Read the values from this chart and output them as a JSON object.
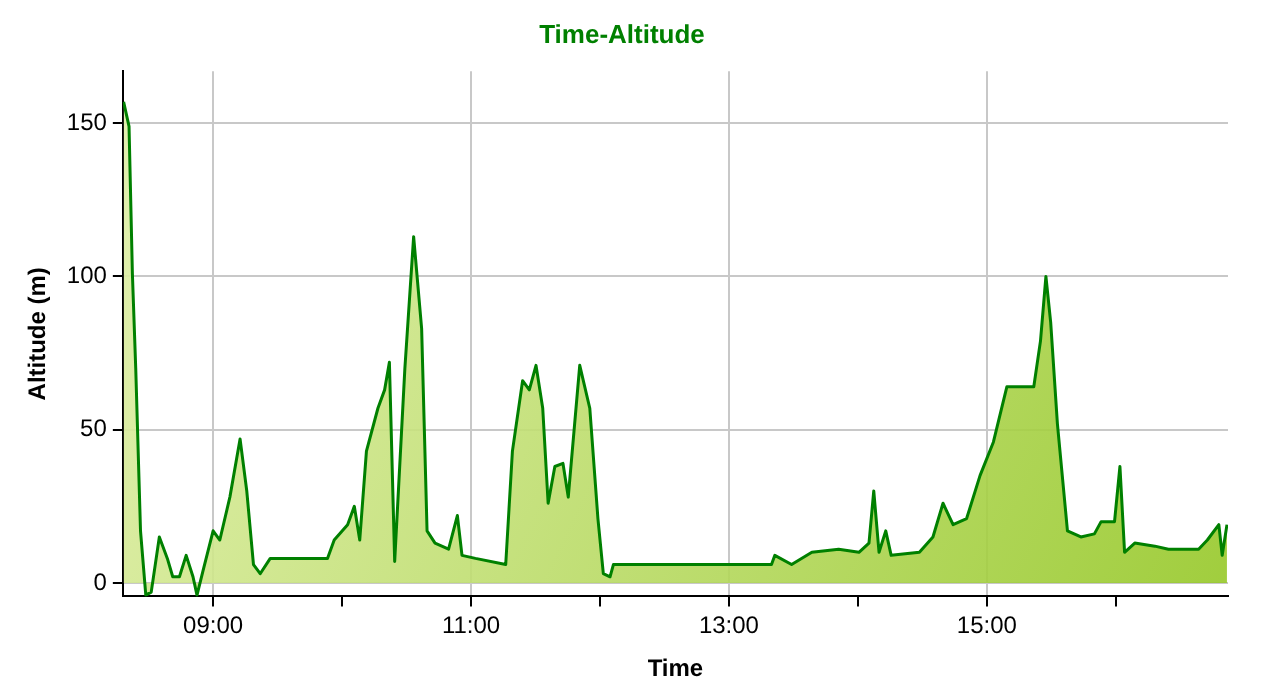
{
  "chart_data": {
    "type": "area",
    "title": "Time-Altitude",
    "xlabel": "Time",
    "ylabel": "Altitude (m)",
    "xlim": [
      8.3,
      16.87
    ],
    "ylim": [
      -4.4,
      167
    ],
    "xticks": [
      {
        "value": 9,
        "label": "09:00"
      },
      {
        "value": 10,
        "label": null
      },
      {
        "value": 11,
        "label": "11:00"
      },
      {
        "value": 12,
        "label": null
      },
      {
        "value": 13,
        "label": "13:00"
      },
      {
        "value": 14,
        "label": null
      },
      {
        "value": 15,
        "label": "15:00"
      },
      {
        "value": 16,
        "label": null
      }
    ],
    "yticks": [
      0,
      50,
      100,
      150
    ],
    "grid": true,
    "legend": false,
    "marker": "none",
    "line_style": "solid",
    "series": [
      {
        "color": "#008000",
        "x": [
          8.306,
          8.348,
          8.374,
          8.4,
          8.437,
          8.478,
          8.52,
          8.583,
          8.645,
          8.687,
          8.739,
          8.791,
          8.844,
          8.875,
          8.922,
          9.0,
          9.052,
          9.13,
          9.209,
          9.261,
          9.313,
          9.365,
          9.443,
          9.469,
          9.887,
          9.939,
          10.043,
          10.095,
          10.137,
          10.189,
          10.278,
          10.33,
          10.367,
          10.408,
          10.487,
          10.555,
          10.617,
          10.659,
          10.721,
          10.826,
          10.894,
          10.93,
          11.034,
          11.269,
          11.321,
          11.4,
          11.452,
          11.504,
          11.556,
          11.598,
          11.65,
          11.713,
          11.754,
          11.843,
          11.921,
          11.984,
          12.026,
          12.078,
          12.104,
          12.286,
          12.652,
          13.33,
          13.356,
          13.486,
          13.643,
          13.851,
          14.008,
          14.086,
          14.123,
          14.164,
          14.216,
          14.258,
          14.477,
          14.582,
          14.66,
          14.738,
          14.843,
          14.947,
          15.051,
          15.155,
          15.364,
          15.416,
          15.458,
          15.495,
          15.547,
          15.625,
          15.729,
          15.834,
          15.886,
          15.99,
          16.032,
          16.068,
          16.147,
          16.303,
          16.408,
          16.642,
          16.71,
          16.799,
          16.825,
          16.862
        ],
        "values": [
          157,
          149,
          101,
          70,
          17,
          -4,
          -3,
          15,
          8,
          2,
          2,
          9,
          2,
          -4,
          4,
          17,
          14,
          28,
          47,
          30,
          6,
          3,
          8,
          8,
          8,
          14,
          19,
          25,
          14,
          43,
          57,
          63,
          72,
          7,
          70,
          113,
          83,
          17,
          13,
          11,
          22,
          9,
          8,
          6,
          43,
          66,
          63,
          71,
          57,
          26,
          38,
          39,
          28,
          71,
          57,
          21,
          3,
          2,
          6,
          6,
          6,
          6,
          9,
          6,
          10,
          11,
          10,
          13,
          30,
          10,
          17,
          9,
          10,
          15,
          26,
          19,
          21,
          35,
          46,
          64,
          64,
          79,
          100,
          85,
          52,
          17,
          15,
          16,
          20,
          20,
          38,
          10,
          13,
          12,
          11,
          11,
          14,
          19,
          9,
          19
        ]
      }
    ]
  }
}
